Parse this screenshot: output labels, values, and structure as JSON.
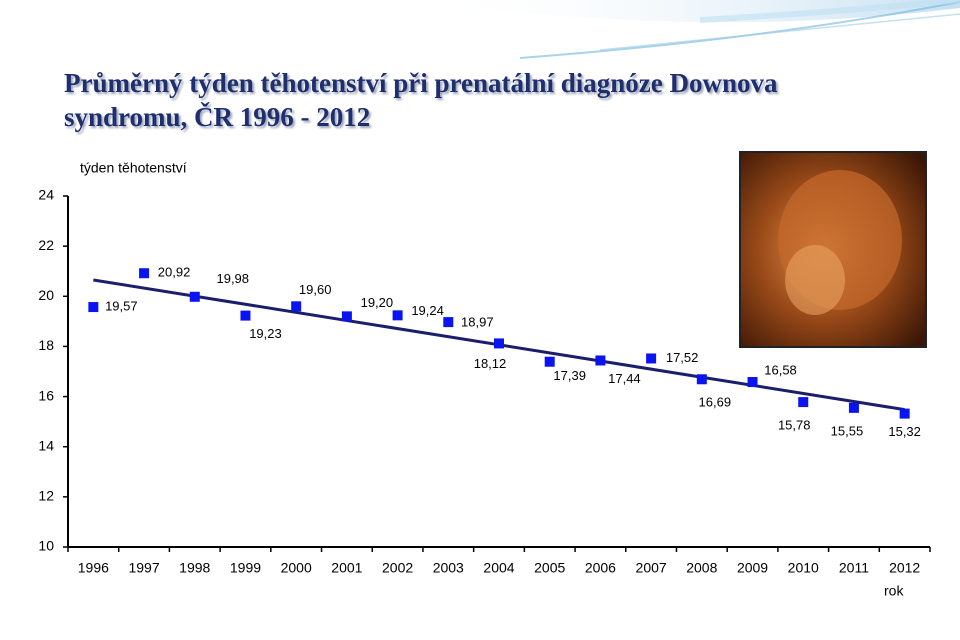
{
  "chart_data": {
    "type": "line",
    "title": "Průměrný týden těhotenství při prenatální diagnóze Downova syndromu, ČR 1996 - 2012",
    "y_label": "týden těhotenství",
    "x_label": "rok",
    "categories": [
      "1996",
      "1997",
      "1998",
      "1999",
      "2000",
      "2001",
      "2002",
      "2003",
      "2004",
      "2005",
      "2006",
      "2007",
      "2008",
      "2009",
      "2010",
      "2011",
      "2012"
    ],
    "series": [
      {
        "name": "týden těhotenství",
        "color": "#0a14f0",
        "values": [
          19.57,
          20.92,
          19.98,
          19.23,
          19.6,
          19.2,
          19.24,
          18.97,
          18.12,
          17.39,
          17.44,
          17.52,
          16.69,
          16.58,
          15.78,
          15.55,
          15.32
        ],
        "value_labels": [
          "19,57",
          "20,92",
          "19,98",
          "19,23",
          "19,60",
          "19,20",
          "19,24",
          "18,97",
          "18,12",
          "17,39",
          "17,44",
          "17,52",
          "16,69",
          "16,58",
          "15,78",
          "15,55",
          "15,32"
        ]
      }
    ],
    "trendline": "linear",
    "trend_color": "#1b1f6b",
    "ylim": [
      10,
      24
    ],
    "yticks": [
      10,
      12,
      14,
      16,
      18,
      20,
      22,
      24
    ],
    "grid": false
  }
}
